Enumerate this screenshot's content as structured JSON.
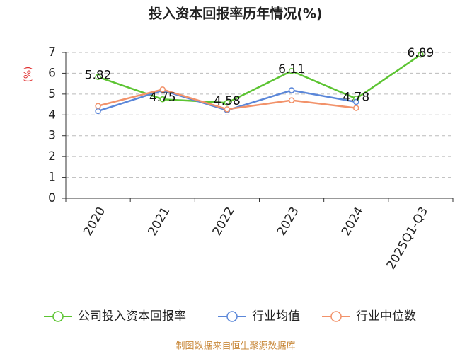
{
  "chart_data": {
    "type": "line",
    "title": "投入资本回报率历年情况(%)",
    "y_label": "(%)",
    "categories": [
      "2020",
      "2021",
      "2022",
      "2023",
      "2024",
      "2025Q1-Q3"
    ],
    "series": [
      {
        "name": "公司投入资本回报率",
        "color": "#5cc432",
        "values": [
          5.82,
          4.75,
          4.58,
          6.11,
          4.78,
          6.89
        ],
        "show_labels": true
      },
      {
        "name": "行业均值",
        "color": "#5b87d9",
        "values": [
          4.18,
          5.18,
          4.22,
          5.18,
          4.62,
          null
        ]
      },
      {
        "name": "行业中位数",
        "color": "#f2926a",
        "values": [
          4.43,
          5.22,
          4.27,
          4.7,
          4.33,
          null
        ]
      }
    ],
    "ylim": [
      0,
      7
    ],
    "yticks": [
      0,
      1,
      2,
      3,
      4,
      5,
      6,
      7
    ],
    "grid": true,
    "source": "制图数据来自恒生聚源数据库"
  }
}
